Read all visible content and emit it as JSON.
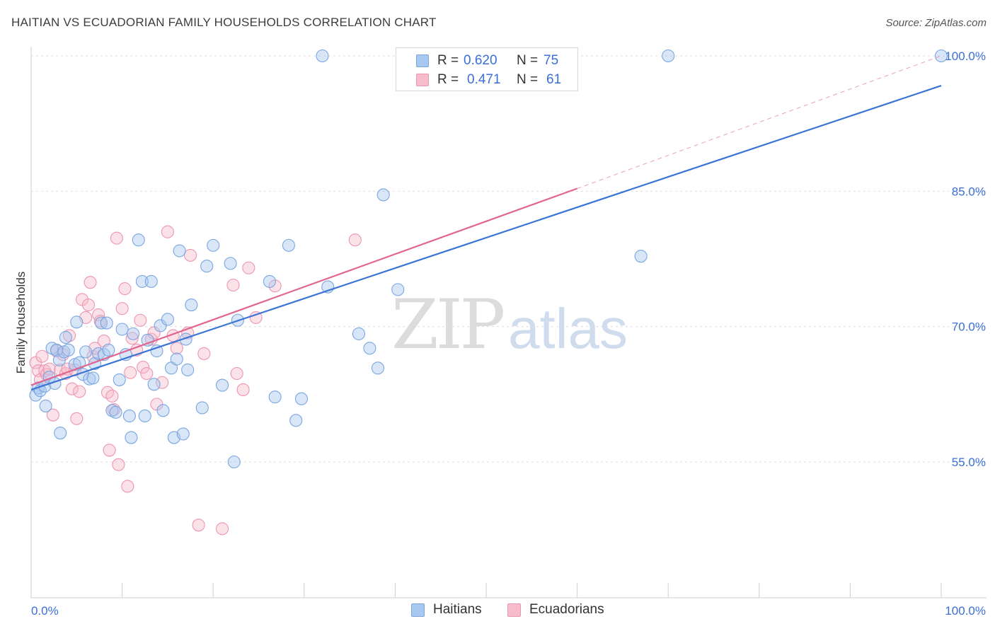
{
  "title": "HAITIAN VS ECUADORIAN FAMILY HOUSEHOLDS CORRELATION CHART",
  "source": "Source: ZipAtlas.com",
  "legend_top": {
    "rows": [
      {
        "r_label": "R =",
        "r_value": "0.620",
        "n_label": "N =",
        "n_value": "75"
      },
      {
        "r_label": "R =",
        "r_value": "0.471",
        "n_label": "N =",
        "n_value": "61"
      }
    ]
  },
  "legend_bottom": {
    "items": [
      "Haitians",
      "Ecuadorians"
    ]
  },
  "watermark": {
    "zip": "ZIP",
    "atlas": "atlas"
  },
  "colors": {
    "haitian_fill": "#a8c8f0",
    "haitian_stroke": "#7aa6e0",
    "haitian_line": "#3a74d4",
    "ecuadorian_fill": "#f6bccd",
    "ecuadorian_stroke": "#ec96b2",
    "ecuadorian_line": "#e0668f",
    "tick_label": "#3a6fd8",
    "grid": "#dddddd"
  },
  "chart_data": {
    "type": "scatter",
    "title": "HAITIAN VS ECUADORIAN FAMILY HOUSEHOLDS CORRELATION CHART",
    "xlabel": "",
    "ylabel": "Family Households",
    "xlim": [
      0,
      105
    ],
    "ylim": [
      39,
      103
    ],
    "x_tick_labels": [
      {
        "value": 0,
        "label": "0.0%"
      },
      {
        "value": 100,
        "label": "100.0%"
      }
    ],
    "y_tick_labels": [
      {
        "value": 55,
        "label": "55.0%"
      },
      {
        "value": 70,
        "label": "70.0%"
      },
      {
        "value": 85,
        "label": "85.0%"
      },
      {
        "value": 100,
        "label": "100.0%"
      }
    ],
    "x_minor_ticks": [
      0,
      10,
      20,
      30,
      40,
      50,
      60,
      70,
      80,
      90,
      100
    ],
    "series": [
      {
        "name": "Haitians",
        "r": 0.62,
        "n": 75,
        "trend": {
          "x0": 0,
          "y0": 63.0,
          "x1": 100,
          "y1": 96.7,
          "dashed_to": null
        },
        "points": [
          [
            0.5,
            62.4
          ],
          [
            0.8,
            63.2
          ],
          [
            1.0,
            62.9
          ],
          [
            1.5,
            63.4
          ],
          [
            1.6,
            61.2
          ],
          [
            2.0,
            64.4
          ],
          [
            2.3,
            67.6
          ],
          [
            2.8,
            67.4
          ],
          [
            3.1,
            66.3
          ],
          [
            3.2,
            58.2
          ],
          [
            3.6,
            67.2
          ],
          [
            3.8,
            68.8
          ],
          [
            4.1,
            67.4
          ],
          [
            4.8,
            65.8
          ],
          [
            5.0,
            70.5
          ],
          [
            5.3,
            66.0
          ],
          [
            5.7,
            64.7
          ],
          [
            6.0,
            67.2
          ],
          [
            6.4,
            64.2
          ],
          [
            6.8,
            64.3
          ],
          [
            7.0,
            65.9
          ],
          [
            7.4,
            67.0
          ],
          [
            7.7,
            70.4
          ],
          [
            8.0,
            66.9
          ],
          [
            8.3,
            70.4
          ],
          [
            8.5,
            67.4
          ],
          [
            8.9,
            60.7
          ],
          [
            9.3,
            60.5
          ],
          [
            9.7,
            64.1
          ],
          [
            10.0,
            69.7
          ],
          [
            10.4,
            66.9
          ],
          [
            10.8,
            60.1
          ],
          [
            11.0,
            57.7
          ],
          [
            11.2,
            69.2
          ],
          [
            11.8,
            79.6
          ],
          [
            12.2,
            75.0
          ],
          [
            12.5,
            60.1
          ],
          [
            12.8,
            68.5
          ],
          [
            13.2,
            75.0
          ],
          [
            13.5,
            63.6
          ],
          [
            13.8,
            67.3
          ],
          [
            14.2,
            70.1
          ],
          [
            14.5,
            60.7
          ],
          [
            15.0,
            70.8
          ],
          [
            15.4,
            65.4
          ],
          [
            15.7,
            57.7
          ],
          [
            16.0,
            66.4
          ],
          [
            16.3,
            78.4
          ],
          [
            16.7,
            58.1
          ],
          [
            17.0,
            68.6
          ],
          [
            17.2,
            65.2
          ],
          [
            17.6,
            72.4
          ],
          [
            18.8,
            61.0
          ],
          [
            19.3,
            76.7
          ],
          [
            20.0,
            79.0
          ],
          [
            21.0,
            63.5
          ],
          [
            21.9,
            77.0
          ],
          [
            22.3,
            55.0
          ],
          [
            22.7,
            70.7
          ],
          [
            26.2,
            75.0
          ],
          [
            26.8,
            62.2
          ],
          [
            28.3,
            79.0
          ],
          [
            29.1,
            59.6
          ],
          [
            29.7,
            62.0
          ],
          [
            32.0,
            100.0
          ],
          [
            32.6,
            74.4
          ],
          [
            36.0,
            69.2
          ],
          [
            37.2,
            67.6
          ],
          [
            38.1,
            65.4
          ],
          [
            38.7,
            84.6
          ],
          [
            40.3,
            74.1
          ],
          [
            67.0,
            77.8
          ],
          [
            70.0,
            100.0
          ],
          [
            100.0,
            100.0
          ],
          [
            2.6,
            63.7
          ]
        ]
      },
      {
        "name": "Ecuadorians",
        "r": 0.471,
        "n": 61,
        "trend": {
          "x0": 0,
          "y0": 63.5,
          "x1": 60,
          "y1": 85.3,
          "dashed_to": {
            "x": 100,
            "y": 100.0
          }
        },
        "points": [
          [
            0.5,
            66.0
          ],
          [
            0.8,
            65.1
          ],
          [
            1.0,
            64.1
          ],
          [
            1.2,
            66.7
          ],
          [
            1.5,
            65.1
          ],
          [
            1.7,
            64.7
          ],
          [
            2.0,
            65.3
          ],
          [
            2.4,
            60.2
          ],
          [
            2.8,
            67.3
          ],
          [
            3.2,
            65.2
          ],
          [
            3.5,
            66.9
          ],
          [
            3.8,
            64.8
          ],
          [
            4.0,
            65.3
          ],
          [
            4.2,
            69.0
          ],
          [
            4.5,
            63.1
          ],
          [
            4.8,
            65.2
          ],
          [
            5.0,
            59.8
          ],
          [
            5.3,
            62.8
          ],
          [
            5.6,
            73.0
          ],
          [
            6.0,
            71.0
          ],
          [
            6.3,
            72.4
          ],
          [
            6.5,
            74.9
          ],
          [
            6.8,
            66.7
          ],
          [
            7.0,
            67.6
          ],
          [
            7.4,
            71.3
          ],
          [
            7.6,
            70.6
          ],
          [
            8.0,
            68.4
          ],
          [
            8.4,
            62.7
          ],
          [
            8.6,
            56.3
          ],
          [
            8.9,
            62.3
          ],
          [
            9.1,
            60.8
          ],
          [
            9.4,
            79.8
          ],
          [
            9.6,
            54.7
          ],
          [
            10.0,
            72.0
          ],
          [
            10.3,
            74.2
          ],
          [
            10.6,
            52.3
          ],
          [
            10.9,
            64.9
          ],
          [
            11.1,
            68.7
          ],
          [
            11.6,
            67.4
          ],
          [
            12.0,
            70.7
          ],
          [
            12.3,
            65.5
          ],
          [
            12.7,
            64.8
          ],
          [
            13.2,
            68.6
          ],
          [
            13.5,
            69.3
          ],
          [
            13.8,
            61.4
          ],
          [
            14.4,
            63.8
          ],
          [
            15.0,
            80.5
          ],
          [
            15.6,
            69.0
          ],
          [
            16.0,
            67.6
          ],
          [
            17.2,
            69.3
          ],
          [
            17.5,
            77.9
          ],
          [
            18.4,
            48.0
          ],
          [
            19.0,
            67.0
          ],
          [
            21.0,
            47.6
          ],
          [
            22.2,
            74.6
          ],
          [
            22.6,
            64.8
          ],
          [
            23.3,
            63.0
          ],
          [
            23.9,
            76.5
          ],
          [
            24.7,
            71.0
          ],
          [
            26.8,
            74.5
          ],
          [
            35.6,
            79.6
          ]
        ]
      }
    ]
  }
}
